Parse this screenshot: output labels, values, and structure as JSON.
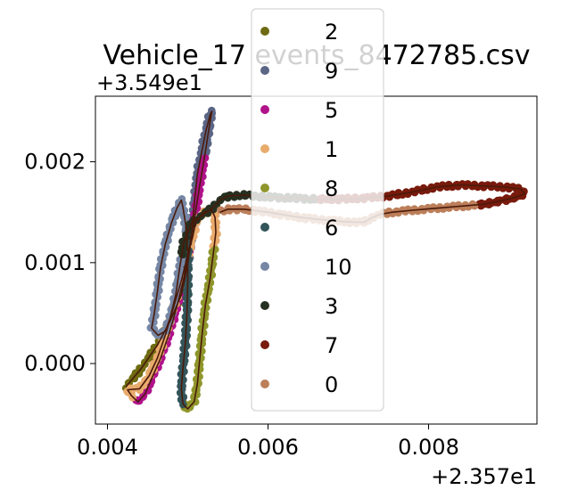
{
  "chart_data": {
    "type": "scatter",
    "title": "Vehicle_17 events_8472785.csv",
    "xlabel": "",
    "ylabel": "",
    "x_offset_label": "+2.357e1",
    "y_offset_label": "+3.549e1",
    "xlim": [
      0.00385,
      0.00935
    ],
    "ylim": [
      -0.0006,
      0.00265
    ],
    "x_ticks": [
      {
        "value": 0.004,
        "label": "0.004"
      },
      {
        "value": 0.006,
        "label": "0.006"
      },
      {
        "value": 0.008,
        "label": "0.008"
      }
    ],
    "y_ticks": [
      {
        "value": 0.0,
        "label": "0.000"
      },
      {
        "value": 0.001,
        "label": "0.001"
      },
      {
        "value": 0.002,
        "label": "0.002"
      }
    ],
    "grid": false,
    "legend_position": "top-center",
    "track_color": "#4a1a0a",
    "track": [
      [
        0.00423,
        -0.00023
      ],
      [
        0.00442,
        -5e-05
      ],
      [
        0.00462,
        0.00018
      ],
      [
        0.00478,
        0.00042
      ],
      [
        0.00492,
        0.00068
      ],
      [
        0.005,
        0.00098
      ],
      [
        0.00505,
        0.00128
      ],
      [
        0.00508,
        0.00158
      ],
      [
        0.00512,
        0.00188
      ],
      [
        0.00518,
        0.00212
      ],
      [
        0.00523,
        0.00232
      ],
      [
        0.00528,
        0.00247
      ],
      [
        0.0053,
        0.0025
      ],
      [
        0.00527,
        0.00236
      ],
      [
        0.00522,
        0.0021
      ],
      [
        0.00516,
        0.00182
      ],
      [
        0.0051,
        0.00152
      ],
      [
        0.00503,
        0.0012
      ],
      [
        0.00496,
        0.00088
      ],
      [
        0.00487,
        0.00058
      ],
      [
        0.00477,
        0.0003
      ],
      [
        0.00466,
        5e-05
      ],
      [
        0.00455,
        -0.00015
      ],
      [
        0.00447,
        -0.0003
      ],
      [
        0.00438,
        -0.00038
      ],
      [
        0.0043,
        -0.00032
      ],
      [
        0.00425,
        -0.00026
      ],
      [
        0.0044,
        -0.00025
      ],
      [
        0.00452,
        -0.00012
      ],
      [
        0.00462,
        5e-05
      ],
      [
        0.00472,
        0.00028
      ],
      [
        0.00482,
        0.00055
      ],
      [
        0.00492,
        0.00082
      ],
      [
        0.005,
        0.00108
      ],
      [
        0.00506,
        0.00125
      ],
      [
        0.0051,
        0.0014
      ],
      [
        0.0052,
        0.0015
      ],
      [
        0.0053,
        0.00152
      ],
      [
        0.00534,
        0.00145
      ],
      [
        0.00535,
        0.0013
      ],
      [
        0.00532,
        0.0011
      ],
      [
        0.00528,
        0.00085
      ],
      [
        0.00522,
        0.00058
      ],
      [
        0.00518,
        0.0003
      ],
      [
        0.00515,
        5e-05
      ],
      [
        0.00512,
        -0.0002
      ],
      [
        0.00508,
        -0.00038
      ],
      [
        0.005,
        -0.00045
      ],
      [
        0.00494,
        -0.0004
      ],
      [
        0.00492,
        -0.00025
      ],
      [
        0.00494,
        -5e-05
      ],
      [
        0.00497,
        0.0002
      ],
      [
        0.00499,
        0.0005
      ],
      [
        0.005,
        0.0008
      ],
      [
        0.005,
        0.0011
      ],
      [
        0.00498,
        0.00135
      ],
      [
        0.00494,
        0.00155
      ],
      [
        0.00492,
        0.00162
      ],
      [
        0.00487,
        0.00155
      ],
      [
        0.0048,
        0.0014
      ],
      [
        0.00472,
        0.00118
      ],
      [
        0.00466,
        0.00095
      ],
      [
        0.00462,
        0.0007
      ],
      [
        0.00458,
        0.00048
      ],
      [
        0.00455,
        0.00035
      ],
      [
        0.00463,
        0.00028
      ],
      [
        0.00472,
        0.00032
      ],
      [
        0.00478,
        0.00045
      ],
      [
        0.00485,
        0.00068
      ],
      [
        0.0049,
        0.00095
      ],
      [
        0.00495,
        0.0012
      ],
      [
        0.00505,
        0.0014
      ],
      [
        0.0052,
        0.00148
      ],
      [
        0.00532,
        0.00155
      ],
      [
        0.0054,
        0.00162
      ],
      [
        0.0055,
        0.00166
      ],
      [
        0.0057,
        0.00167
      ],
      [
        0.006,
        0.00165
      ],
      [
        0.0063,
        0.00164
      ],
      [
        0.0066,
        0.00163
      ],
      [
        0.0069,
        0.00163
      ],
      [
        0.0072,
        0.00164
      ],
      [
        0.0075,
        0.00166
      ],
      [
        0.0078,
        0.0017
      ],
      [
        0.0081,
        0.00175
      ],
      [
        0.0084,
        0.00177
      ],
      [
        0.0087,
        0.00176
      ],
      [
        0.00895,
        0.00175
      ],
      [
        0.00915,
        0.00173
      ],
      [
        0.0092,
        0.00168
      ],
      [
        0.009,
        0.00163
      ],
      [
        0.0087,
        0.00158
      ],
      [
        0.0084,
        0.00156
      ],
      [
        0.0081,
        0.00154
      ],
      [
        0.0078,
        0.00152
      ],
      [
        0.00755,
        0.0015
      ],
      [
        0.0074,
        0.00148
      ],
      [
        0.00728,
        0.00144
      ],
      [
        0.0072,
        0.0014
      ],
      [
        0.0071,
        0.0014
      ],
      [
        0.0069,
        0.00141
      ],
      [
        0.0066,
        0.00143
      ],
      [
        0.0063,
        0.00146
      ],
      [
        0.006,
        0.0015
      ],
      [
        0.0057,
        0.00153
      ],
      [
        0.0055,
        0.00153
      ],
      [
        0.0054,
        0.0015
      ]
    ],
    "series": [
      {
        "name": "2",
        "color": "#6e6b12",
        "range": [
          0.0,
          0.06
        ]
      },
      {
        "name": "9",
        "color": "#5b6585",
        "range": [
          0.06,
          0.16
        ]
      },
      {
        "name": "5",
        "color": "#b0128a",
        "range": [
          0.16,
          0.28
        ]
      },
      {
        "name": "1",
        "color": "#e8ab6c",
        "range": [
          0.28,
          0.4
        ]
      },
      {
        "name": "8",
        "color": "#8f962b",
        "range": [
          0.4,
          0.48
        ]
      },
      {
        "name": "6",
        "color": "#33555a",
        "range": [
          0.48,
          0.56
        ]
      },
      {
        "name": "10",
        "color": "#7687a5",
        "range": [
          0.56,
          0.68
        ]
      },
      {
        "name": "3",
        "color": "#263020",
        "range": [
          0.68,
          0.76
        ]
      },
      {
        "name": "7",
        "color": "#781a0c",
        "range": [
          0.76,
          0.88
        ]
      },
      {
        "name": "0",
        "color": "#bc7f5a",
        "range": [
          0.88,
          1.0
        ]
      }
    ]
  }
}
